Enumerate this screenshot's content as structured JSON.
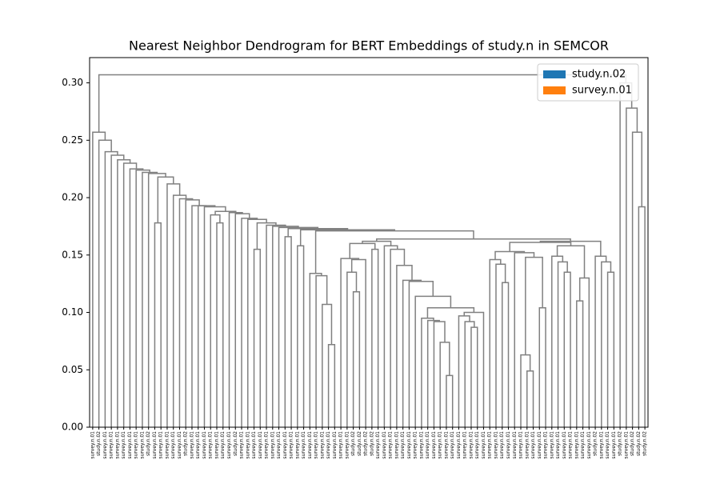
{
  "chart_data": {
    "type": "dendrogram",
    "title": "Nearest Neighbor Dendrogram for BERT Embeddings of study.n in SEMCOR",
    "link_color": "#808080",
    "legend_loc": "upper right",
    "legend": [
      {
        "name": "study.n.02",
        "color": "#1f77b4"
      },
      {
        "name": "survey.n.01",
        "color": "#ff7f0e"
      }
    ],
    "ylim": [
      0,
      0.322
    ],
    "yticks": [
      {
        "value": 0,
        "label": "0.00"
      },
      {
        "value": 0.05,
        "label": "0.05"
      },
      {
        "value": 0.1,
        "label": "0.10"
      },
      {
        "value": 0.15,
        "label": "0.15"
      },
      {
        "value": 0.2,
        "label": "0.20"
      },
      {
        "value": 0.25,
        "label": "0.25"
      },
      {
        "value": 0.3,
        "label": "0.30"
      }
    ],
    "leaves": [
      "survey.n.01",
      "study.n.02",
      "survey.n.01",
      "survey.n.01",
      "survey.n.01",
      "survey.n.01",
      "survey.n.01",
      "survey.n.01",
      "survey.n.01",
      "study.n.02",
      "survey.n.01",
      "survey.n.01",
      "survey.n.01",
      "survey.n.01",
      "survey.n.01",
      "study.n.02",
      "survey.n.01",
      "survey.n.01",
      "survey.n.01",
      "survey.n.01",
      "survey.n.01",
      "survey.n.01",
      "survey.n.01",
      "study.n.02",
      "survey.n.01",
      "survey.n.01",
      "survey.n.01",
      "survey.n.01",
      "survey.n.01",
      "survey.n.01",
      "survey.n.01",
      "survey.n.01",
      "survey.n.01",
      "survey.n.01",
      "survey.n.01",
      "survey.n.01",
      "survey.n.01",
      "survey.n.01",
      "survey.n.01",
      "survey.n.01",
      "survey.n.01",
      "survey.n.01",
      "study.n.02",
      "study.n.02",
      "study.n.02",
      "study.n.02",
      "survey.n.01",
      "survey.n.01",
      "survey.n.01",
      "survey.n.01",
      "survey.n.01",
      "survey.n.01",
      "survey.n.01",
      "survey.n.01",
      "survey.n.01",
      "survey.n.01",
      "survey.n.01",
      "survey.n.01",
      "survey.n.01",
      "survey.n.01",
      "survey.n.01",
      "survey.n.01",
      "survey.n.01",
      "survey.n.01",
      "survey.n.01",
      "survey.n.01",
      "survey.n.01",
      "survey.n.01",
      "survey.n.01",
      "survey.n.01",
      "survey.n.01",
      "survey.n.01",
      "survey.n.01",
      "survey.n.01",
      "survey.n.01",
      "survey.n.01",
      "survey.n.01",
      "survey.n.01",
      "survey.n.01",
      "survey.n.01",
      "survey.n.01",
      "study.n.02",
      "survey.n.01",
      "survey.n.01",
      "survey.n.01",
      "study.n.02",
      "survey.n.01",
      "study.n.02",
      "study.n.02",
      "study.n.02"
    ],
    "linkage": [
      [
        38,
        39,
        0.072
      ],
      [
        37,
        90,
        0.107
      ],
      [
        36,
        91,
        0.132
      ],
      [
        35,
        92,
        0.134
      ],
      [
        42,
        43,
        0.118
      ],
      [
        41,
        94,
        0.135
      ],
      [
        95,
        44,
        0.146
      ],
      [
        40,
        96,
        0.147
      ],
      [
        45,
        46,
        0.155
      ],
      [
        97,
        98,
        0.16
      ],
      [
        57,
        58,
        0.045
      ],
      [
        56,
        100,
        0.074
      ],
      [
        55,
        101,
        0.092
      ],
      [
        54,
        102,
        0.093
      ],
      [
        53,
        103,
        0.095
      ],
      [
        61,
        62,
        0.087
      ],
      [
        60,
        105,
        0.092
      ],
      [
        59,
        106,
        0.097
      ],
      [
        107,
        63,
        0.1
      ],
      [
        104,
        108,
        0.104
      ],
      [
        52,
        109,
        0.114
      ],
      [
        51,
        110,
        0.127
      ],
      [
        50,
        111,
        0.128
      ],
      [
        49,
        112,
        0.141
      ],
      [
        48,
        113,
        0.155
      ],
      [
        47,
        114,
        0.158
      ],
      [
        66,
        67,
        0.126
      ],
      [
        65,
        116,
        0.142
      ],
      [
        64,
        117,
        0.146
      ],
      [
        70,
        71,
        0.049
      ],
      [
        69,
        119,
        0.063
      ],
      [
        72,
        73,
        0.104
      ],
      [
        120,
        121,
        0.148
      ],
      [
        68,
        122,
        0.152
      ],
      [
        118,
        123,
        0.153
      ],
      [
        76,
        77,
        0.135
      ],
      [
        75,
        125,
        0.144
      ],
      [
        74,
        126,
        0.149
      ],
      [
        78,
        79,
        0.11
      ],
      [
        128,
        80,
        0.13
      ],
      [
        127,
        129,
        0.158
      ],
      [
        124,
        130,
        0.161
      ],
      [
        83,
        84,
        0.135
      ],
      [
        82,
        132,
        0.144
      ],
      [
        81,
        133,
        0.149
      ],
      [
        131,
        134,
        0.162
      ],
      [
        99,
        115,
        0.162
      ],
      [
        136,
        135,
        0.164
      ],
      [
        93,
        137,
        0.171
      ],
      [
        33,
        34,
        0.158
      ],
      [
        139,
        138,
        0.172
      ],
      [
        31,
        32,
        0.166
      ],
      [
        141,
        140,
        0.173
      ],
      [
        30,
        142,
        0.174
      ],
      [
        29,
        143,
        0.175
      ],
      [
        28,
        144,
        0.176
      ],
      [
        26,
        27,
        0.155
      ],
      [
        146,
        145,
        0.178
      ],
      [
        25,
        147,
        0.181
      ],
      [
        24,
        148,
        0.182
      ],
      [
        23,
        149,
        0.186
      ],
      [
        22,
        150,
        0.187
      ],
      [
        20,
        21,
        0.178
      ],
      [
        19,
        152,
        0.185
      ],
      [
        153,
        151,
        0.188
      ],
      [
        18,
        154,
        0.192
      ],
      [
        17,
        155,
        0.193
      ],
      [
        16,
        156,
        0.193
      ],
      [
        15,
        157,
        0.198
      ],
      [
        14,
        158,
        0.199
      ],
      [
        13,
        159,
        0.202
      ],
      [
        12,
        160,
        0.212
      ],
      [
        10,
        11,
        0.178
      ],
      [
        162,
        161,
        0.218
      ],
      [
        9,
        163,
        0.221
      ],
      [
        8,
        164,
        0.222
      ],
      [
        7,
        165,
        0.224
      ],
      [
        6,
        166,
        0.225
      ],
      [
        5,
        167,
        0.23
      ],
      [
        4,
        168,
        0.233
      ],
      [
        3,
        169,
        0.237
      ],
      [
        2,
        170,
        0.24
      ],
      [
        1,
        171,
        0.25
      ],
      [
        0,
        172,
        0.257
      ],
      [
        88,
        89,
        0.192
      ],
      [
        87,
        174,
        0.257
      ],
      [
        86,
        175,
        0.278
      ],
      [
        85,
        176,
        0.3
      ],
      [
        173,
        177,
        0.307
      ]
    ]
  }
}
